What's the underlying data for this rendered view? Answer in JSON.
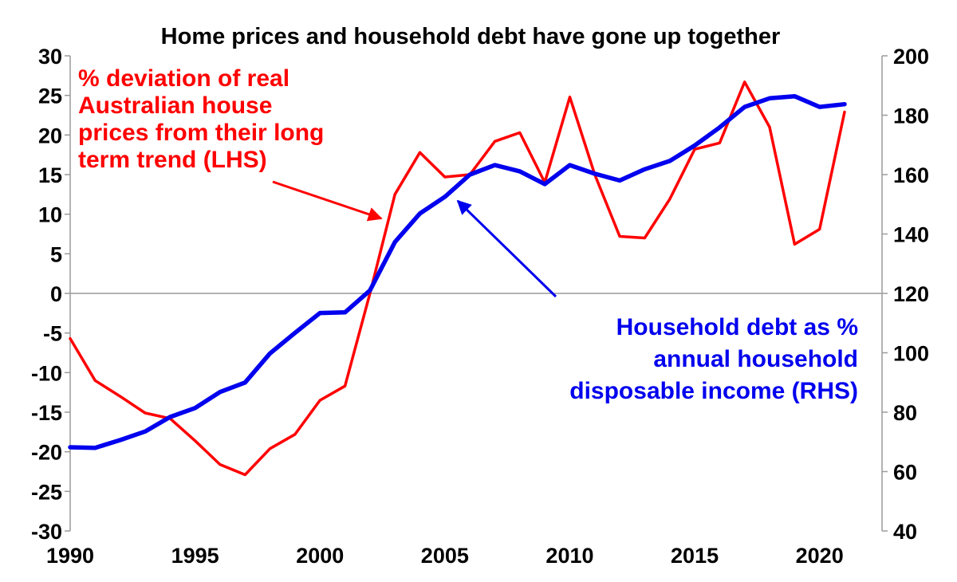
{
  "chart_data": {
    "type": "line",
    "title": "Home prices and household debt have gone up together",
    "x": [
      1990,
      1991,
      1992,
      1993,
      1994,
      1995,
      1996,
      1997,
      1998,
      1999,
      2000,
      2001,
      2002,
      2003,
      2004,
      2005,
      2006,
      2007,
      2008,
      2009,
      2010,
      2011,
      2012,
      2013,
      2014,
      2015,
      2016,
      2017,
      2018,
      2019,
      2020,
      2021
    ],
    "xlim": [
      1990,
      2022.5
    ],
    "x_ticks": [
      "1990",
      "1995",
      "2000",
      "2005",
      "2010",
      "2015",
      "2020"
    ],
    "y_left": {
      "ylim": [
        -30,
        30
      ],
      "ticks": [
        "30",
        "25",
        "20",
        "15",
        "10",
        "5",
        "0",
        "-5",
        "-10",
        "-15",
        "-20",
        "-25",
        "-30"
      ]
    },
    "y_right": {
      "ylim": [
        40,
        200
      ],
      "ticks": [
        "200",
        "180",
        "160",
        "140",
        "120",
        "100",
        "80",
        "60",
        "40"
      ]
    },
    "series": [
      {
        "axis": "left",
        "color": "#ff0000",
        "label_lines": [
          "% deviation of real",
          "Australian house",
          "prices from their long",
          "term trend (LHS)"
        ],
        "values": [
          -5.7,
          -11,
          -13,
          -15.1,
          -15.8,
          -18.6,
          -21.6,
          -22.9,
          -19.6,
          -17.8,
          -13.5,
          -11.7,
          0,
          12.5,
          17.8,
          14.7,
          15,
          19.2,
          20.3,
          14,
          24.8,
          15,
          7.2,
          7,
          11.9,
          18.2,
          19,
          26.7,
          21,
          6.2,
          8.1,
          22.9
        ]
      },
      {
        "axis": "right",
        "color": "#0000ee",
        "label_lines": [
          "Household debt as %",
          "annual household",
          "disposable income (RHS)"
        ],
        "values": [
          68.2,
          68,
          70.6,
          73.5,
          78.4,
          81.4,
          86.8,
          90,
          99.8,
          106.7,
          113.4,
          113.6,
          121,
          137.3,
          146.9,
          152.5,
          160,
          163.2,
          161.1,
          156.8,
          163.2,
          160.3,
          158,
          161.8,
          164.6,
          169.8,
          175.9,
          182.8,
          185.7,
          186.4,
          182.8,
          183.7
        ]
      }
    ]
  }
}
